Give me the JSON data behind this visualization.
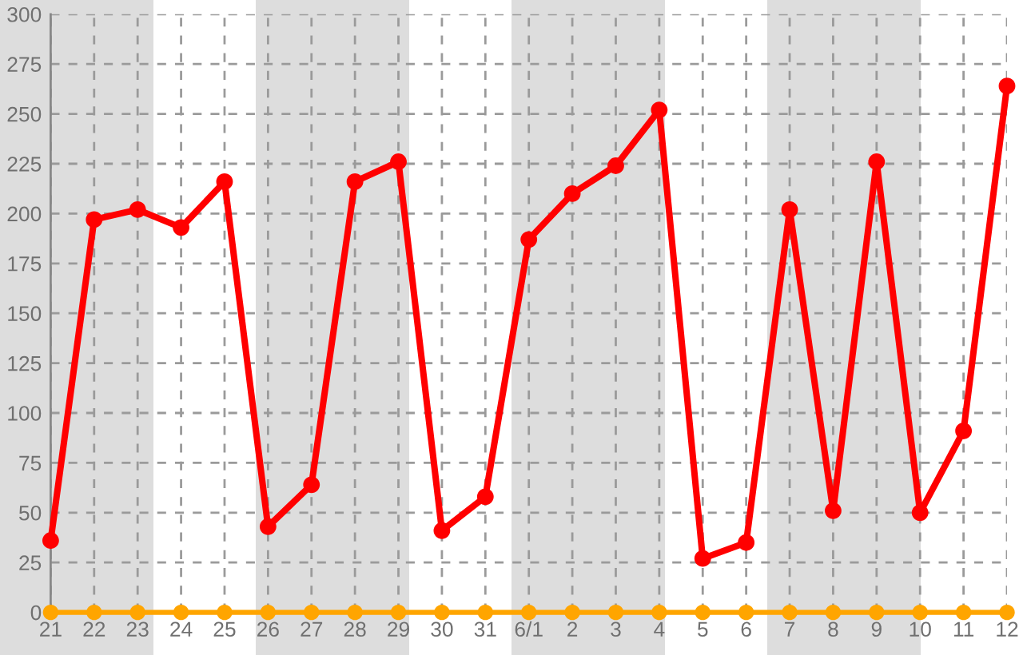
{
  "chart_data": {
    "type": "line",
    "categories": [
      "21",
      "22",
      "23",
      "24",
      "25",
      "26",
      "27",
      "28",
      "29",
      "30",
      "31",
      "6/1",
      "2",
      "3",
      "4",
      "5",
      "6",
      "7",
      "8",
      "9",
      "10",
      "11",
      "12"
    ],
    "series": [
      {
        "color": "#ff0000",
        "values": [
          36,
          197,
          202,
          193,
          216,
          43,
          64,
          216,
          226,
          41,
          58,
          187,
          210,
          224,
          252,
          27,
          35,
          202,
          51,
          226,
          50,
          91,
          264
        ]
      },
      {
        "color": "#ffa500",
        "values": [
          0,
          0,
          0,
          0,
          0,
          0,
          0,
          0,
          0,
          0,
          0,
          0,
          0,
          0,
          0,
          0,
          0,
          0,
          0,
          0,
          0,
          0,
          0
        ]
      }
    ],
    "ylim": [
      0,
      300
    ],
    "yticks": [
      0,
      25,
      50,
      75,
      100,
      125,
      150,
      175,
      200,
      225,
      250,
      275,
      300
    ],
    "grid": true,
    "marker": "circle",
    "line_style": "solid"
  }
}
